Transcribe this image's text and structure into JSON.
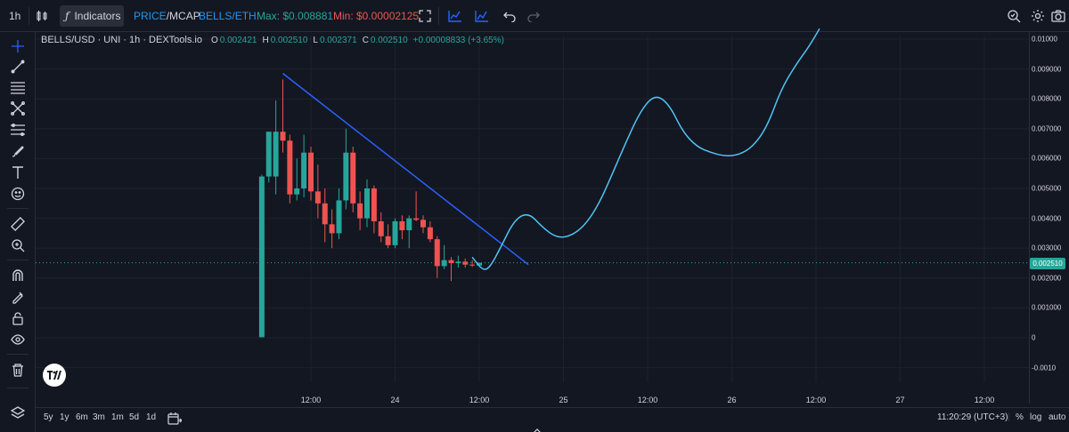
{
  "toolbar": {
    "interval": "1h",
    "indicators_label": "Indicators",
    "price_label": "PRICE",
    "slash": "/",
    "mcap_label": "MCAP",
    "pair_label": "BELLS/ETH",
    "max_label": "Max: $0.008881",
    "min_label": "Min: $0.00002125"
  },
  "legend": {
    "symbol": "BELLS/USD · UNI · 1h · DEXTools.io",
    "o_key": "O",
    "o_val": "0.002421",
    "h_key": "H",
    "h_val": "0.002510",
    "l_key": "L",
    "l_val": "0.002371",
    "c_key": "C",
    "c_val": "0.002510",
    "change": "+0.00008833 (+3.65%)"
  },
  "price_axis": {
    "labels": [
      "0.01000",
      "0.009000",
      "0.008000",
      "0.007000",
      "0.006000",
      "0.005000",
      "0.004000",
      "0.003000",
      "0.002000",
      "0.001000",
      "0",
      "-0.0010"
    ],
    "current_price": "0.002510"
  },
  "time_axis": {
    "labels": [
      "12:00",
      "24",
      "12:00",
      "25",
      "12:00",
      "26",
      "12:00",
      "27",
      "12:00"
    ]
  },
  "bottom": {
    "ranges": [
      "5y",
      "1y",
      "6m",
      "3m",
      "1m",
      "5d",
      "1d"
    ],
    "clock": "11:20:29 (UTC+3)",
    "percent": "%",
    "log": "log",
    "auto": "auto"
  },
  "colors": {
    "up": "#26a69a",
    "down": "#ef5350",
    "trendline": "#2962ff",
    "drawing": "#4fc3f7",
    "accent": "#2962ff"
  },
  "chart_data": {
    "type": "candlestick",
    "x": [
      "23 05:00",
      "23 06:00",
      "23 07:00",
      "23 08:00",
      "23 09:00",
      "23 10:00",
      "23 11:00",
      "23 12:00",
      "23 13:00",
      "23 14:00",
      "23 15:00",
      "23 16:00",
      "23 17:00",
      "23 18:00",
      "23 19:00",
      "23 20:00",
      "23 21:00",
      "23 22:00",
      "23 23:00",
      "24 00:00",
      "24 01:00",
      "24 02:00",
      "24 03:00",
      "24 04:00",
      "24 05:00",
      "24 06:00",
      "24 07:00",
      "24 08:00",
      "24 09:00",
      "24 10:00",
      "24 11:00",
      "24 12:00"
    ],
    "candles": [
      {
        "o": 2e-05,
        "h": 0.00546,
        "l": 2e-05,
        "c": 0.0054
      },
      {
        "o": 0.0054,
        "h": 0.0069,
        "l": 0.0052,
        "c": 0.0069
      },
      {
        "o": 0.0054,
        "h": 0.00795,
        "l": 0.0048,
        "c": 0.0069
      },
      {
        "o": 0.0069,
        "h": 0.00865,
        "l": 0.0062,
        "c": 0.0066
      },
      {
        "o": 0.0066,
        "h": 0.0068,
        "l": 0.0045,
        "c": 0.0048
      },
      {
        "o": 0.0048,
        "h": 0.006,
        "l": 0.0046,
        "c": 0.005
      },
      {
        "o": 0.005,
        "h": 0.0068,
        "l": 0.0047,
        "c": 0.0062
      },
      {
        "o": 0.0062,
        "h": 0.0064,
        "l": 0.0046,
        "c": 0.0049
      },
      {
        "o": 0.0049,
        "h": 0.0058,
        "l": 0.004,
        "c": 0.0045
      },
      {
        "o": 0.0045,
        "h": 0.005,
        "l": 0.0032,
        "c": 0.0038
      },
      {
        "o": 0.0038,
        "h": 0.0043,
        "l": 0.003,
        "c": 0.0035
      },
      {
        "o": 0.0035,
        "h": 0.005,
        "l": 0.0033,
        "c": 0.0046
      },
      {
        "o": 0.0046,
        "h": 0.007,
        "l": 0.0043,
        "c": 0.0062
      },
      {
        "o": 0.0062,
        "h": 0.0064,
        "l": 0.0042,
        "c": 0.0045
      },
      {
        "o": 0.0045,
        "h": 0.0049,
        "l": 0.0036,
        "c": 0.004
      },
      {
        "o": 0.004,
        "h": 0.0053,
        "l": 0.0037,
        "c": 0.005
      },
      {
        "o": 0.005,
        "h": 0.0051,
        "l": 0.0035,
        "c": 0.0039
      },
      {
        "o": 0.0039,
        "h": 0.0042,
        "l": 0.0032,
        "c": 0.0034
      },
      {
        "o": 0.0034,
        "h": 0.0038,
        "l": 0.003,
        "c": 0.0031
      },
      {
        "o": 0.0031,
        "h": 0.004,
        "l": 0.003,
        "c": 0.0039
      },
      {
        "o": 0.0039,
        "h": 0.0041,
        "l": 0.0033,
        "c": 0.0036
      },
      {
        "o": 0.0036,
        "h": 0.0041,
        "l": 0.003,
        "c": 0.004
      },
      {
        "o": 0.004,
        "h": 0.0049,
        "l": 0.0039,
        "c": 0.00395
      },
      {
        "o": 0.00395,
        "h": 0.0041,
        "l": 0.0035,
        "c": 0.0037
      },
      {
        "o": 0.0037,
        "h": 0.0039,
        "l": 0.0032,
        "c": 0.0033
      },
      {
        "o": 0.0033,
        "h": 0.0034,
        "l": 0.002,
        "c": 0.0024
      },
      {
        "o": 0.0024,
        "h": 0.0031,
        "l": 0.0023,
        "c": 0.0026
      },
      {
        "o": 0.0026,
        "h": 0.0027,
        "l": 0.0019,
        "c": 0.0025
      },
      {
        "o": 0.0025,
        "h": 0.00275,
        "l": 0.00235,
        "c": 0.00255
      },
      {
        "o": 0.00255,
        "h": 0.00265,
        "l": 0.00235,
        "c": 0.00245
      },
      {
        "o": 0.00245,
        "h": 0.0026,
        "l": 0.00237,
        "c": 0.00242
      },
      {
        "o": 0.00242,
        "h": 0.00251,
        "l": 0.00237,
        "c": 0.00251
      }
    ],
    "ylim": [
      -0.0012,
      0.0104
    ],
    "trendline": [
      {
        "x": "23 08:00",
        "y": 0.00885
      },
      {
        "x": "24 19:00",
        "y": 0.00245
      }
    ],
    "projection": [
      {
        "x": "24 11:00",
        "y": 0.0027
      },
      {
        "x": "24 12:30",
        "y": 0.00225
      },
      {
        "x": "24 13:30",
        "y": 0.00235
      },
      {
        "x": "24 15:00",
        "y": 0.003
      },
      {
        "x": "24 17:00",
        "y": 0.00395
      },
      {
        "x": "24 19:00",
        "y": 0.0042
      },
      {
        "x": "24 21:00",
        "y": 0.0037
      },
      {
        "x": "24 23:00",
        "y": 0.00335
      },
      {
        "x": "25 01:00",
        "y": 0.0034
      },
      {
        "x": "25 03:00",
        "y": 0.00375
      },
      {
        "x": "25 05:00",
        "y": 0.00445
      },
      {
        "x": "25 07:00",
        "y": 0.0055
      },
      {
        "x": "25 09:00",
        "y": 0.0066
      },
      {
        "x": "25 11:00",
        "y": 0.0076
      },
      {
        "x": "25 13:00",
        "y": 0.00815
      },
      {
        "x": "25 15:00",
        "y": 0.00785
      },
      {
        "x": "25 17:00",
        "y": 0.0069
      },
      {
        "x": "25 19:00",
        "y": 0.0064
      },
      {
        "x": "25 21:00",
        "y": 0.0062
      },
      {
        "x": "25 23:00",
        "y": 0.00608
      },
      {
        "x": "26 01:00",
        "y": 0.00612
      },
      {
        "x": "26 03:00",
        "y": 0.0064
      },
      {
        "x": "26 05:00",
        "y": 0.00705
      },
      {
        "x": "26 07:00",
        "y": 0.0083
      },
      {
        "x": "26 09:00",
        "y": 0.0091
      },
      {
        "x": "26 11:00",
        "y": 0.00975
      },
      {
        "x": "26 12:30",
        "y": 0.01035
      }
    ]
  }
}
